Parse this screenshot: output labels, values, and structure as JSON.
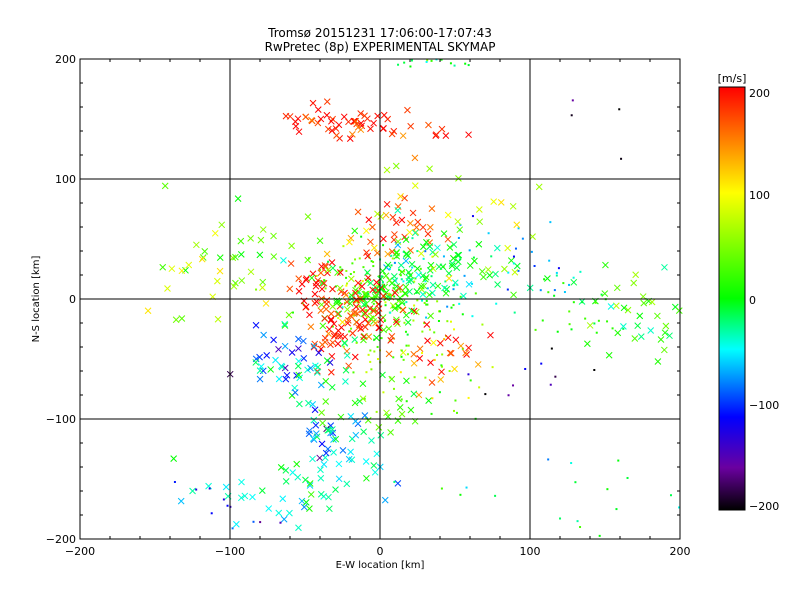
{
  "chart_data": {
    "type": "scatter",
    "title": "Tromsø 20151231 17:06:00-17:07:43",
    "subtitle": "RwPretec (8p) EXPERIMENTAL SKYMAP",
    "xlabel": "E-W location [km]",
    "ylabel": "N-S location [km]",
    "xlim": [
      -200,
      200
    ],
    "ylim": [
      -200,
      200
    ],
    "xticks": [
      "−200",
      "−100",
      "0",
      "100",
      "200"
    ],
    "yticks": [
      "200",
      "100",
      "0",
      "−100",
      "−200"
    ],
    "grid": true,
    "colorbar": {
      "label": "[m/s]",
      "range": [
        -200,
        200
      ],
      "ticks": [
        "200",
        "100",
        "0",
        "−100",
        "−200"
      ],
      "colormap": "rainbow (black-purple-blue-cyan-green-yellow-red)"
    },
    "markers": [
      "x",
      "dot"
    ],
    "clusters": [
      {
        "x": -30,
        "y": 147,
        "sx": 20,
        "sy": 6,
        "v": 195,
        "n": 40,
        "marker": "x"
      },
      {
        "x": -15,
        "y": 143,
        "sx": 8,
        "sy": 4,
        "v": 185,
        "n": 10,
        "marker": "x"
      },
      {
        "x": 30,
        "y": 140,
        "sx": 15,
        "sy": 6,
        "v": 180,
        "n": 8,
        "marker": "x"
      },
      {
        "x": 35,
        "y": 198,
        "sx": 12,
        "sy": 3,
        "v": 10,
        "n": 14,
        "marker": "dot"
      },
      {
        "x": 5,
        "y": 2,
        "sx": 25,
        "sy": 20,
        "v": 40,
        "n": 120,
        "marker": "dot"
      },
      {
        "x": 0,
        "y": 0,
        "sx": 18,
        "sy": 14,
        "v": 20,
        "n": 80,
        "marker": "x"
      },
      {
        "x": -10,
        "y": -10,
        "sx": 15,
        "sy": 15,
        "v": 190,
        "n": 60,
        "marker": "x"
      },
      {
        "x": -30,
        "y": -30,
        "sx": 12,
        "sy": 15,
        "v": 195,
        "n": 30,
        "marker": "x"
      },
      {
        "x": -40,
        "y": 10,
        "sx": 10,
        "sy": 10,
        "v": 195,
        "n": 30,
        "marker": "x"
      },
      {
        "x": 10,
        "y": 55,
        "sx": 15,
        "sy": 12,
        "v": 170,
        "n": 35,
        "marker": "x"
      },
      {
        "x": 25,
        "y": 15,
        "sx": 25,
        "sy": 18,
        "v": -40,
        "n": 50,
        "marker": "dot"
      },
      {
        "x": 20,
        "y": 25,
        "sx": 20,
        "sy": 18,
        "v": -5,
        "n": 50,
        "marker": "x"
      },
      {
        "x": 55,
        "y": 20,
        "sx": 25,
        "sy": 15,
        "v": 0,
        "n": 30,
        "marker": "x"
      },
      {
        "x": 45,
        "y": -40,
        "sx": 15,
        "sy": 12,
        "v": 195,
        "n": 14,
        "marker": "x"
      },
      {
        "x": 35,
        "y": -55,
        "sx": 10,
        "sy": 12,
        "v": 130,
        "n": 12,
        "marker": "x"
      },
      {
        "x": -60,
        "y": -45,
        "sx": 15,
        "sy": 15,
        "v": -100,
        "n": 25,
        "marker": "x"
      },
      {
        "x": -50,
        "y": -60,
        "sx": 18,
        "sy": 18,
        "v": -20,
        "n": 30,
        "marker": "x"
      },
      {
        "x": -40,
        "y": -120,
        "sx": 12,
        "sy": 15,
        "v": -110,
        "n": 15,
        "marker": "x"
      },
      {
        "x": -30,
        "y": -135,
        "sx": 15,
        "sy": 18,
        "v": -50,
        "n": 40,
        "marker": "x"
      },
      {
        "x": -60,
        "y": -165,
        "sx": 30,
        "sy": 20,
        "v": -30,
        "n": 35,
        "marker": "x"
      },
      {
        "x": -100,
        "y": -180,
        "sx": 15,
        "sy": 15,
        "v": -120,
        "n": 15,
        "marker": "dot"
      },
      {
        "x": 170,
        "y": -15,
        "sx": 20,
        "sy": 22,
        "v": 20,
        "n": 35,
        "marker": "x"
      },
      {
        "x": 130,
        "y": -5,
        "sx": 25,
        "sy": 20,
        "v": 5,
        "n": 25,
        "marker": "dot"
      },
      {
        "x": 100,
        "y": 30,
        "sx": 20,
        "sy": 20,
        "v": -70,
        "n": 25,
        "marker": "dot"
      },
      {
        "x": -80,
        "y": 30,
        "sx": 30,
        "sy": 30,
        "v": 40,
        "n": 40,
        "marker": "x"
      },
      {
        "x": -130,
        "y": 20,
        "sx": 15,
        "sy": 20,
        "v": 100,
        "n": 10,
        "marker": "x"
      },
      {
        "x": 10,
        "y": -40,
        "sx": 20,
        "sy": 20,
        "v": 60,
        "n": 40,
        "marker": "dot"
      },
      {
        "x": 0,
        "y": -95,
        "sx": 25,
        "sy": 20,
        "v": 20,
        "n": 25,
        "marker": "x"
      },
      {
        "x": 50,
        "y": -80,
        "sx": 20,
        "sy": 15,
        "v": 50,
        "n": 15,
        "marker": "dot"
      },
      {
        "x": 130,
        "y": -170,
        "sx": 40,
        "sy": 20,
        "v": -20,
        "n": 20,
        "marker": "dot"
      },
      {
        "x": 40,
        "y": 70,
        "sx": 40,
        "sy": 30,
        "v": 80,
        "n": 30,
        "marker": "x"
      },
      {
        "x": 100,
        "y": -60,
        "sx": 25,
        "sy": 20,
        "v": -150,
        "n": 10,
        "marker": "dot"
      },
      {
        "x": 150,
        "y": 150,
        "sx": 30,
        "sy": 30,
        "v": -200,
        "n": 4,
        "marker": "dot"
      }
    ]
  }
}
